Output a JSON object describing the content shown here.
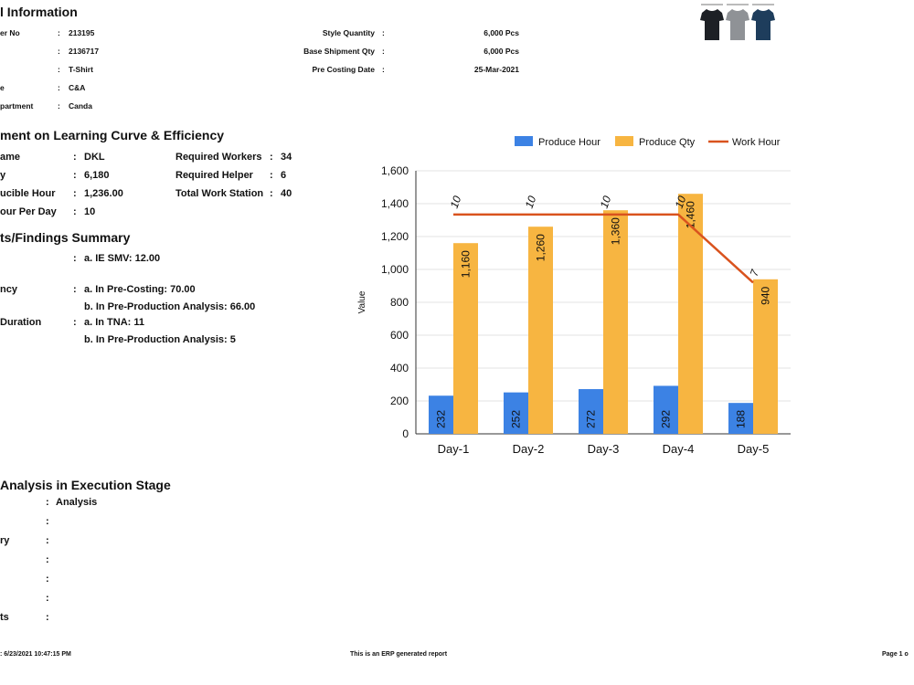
{
  "general": {
    "title": "l Information",
    "rows": [
      {
        "label": "er No",
        "value": "213195"
      },
      {
        "label": "",
        "value": "2136717"
      },
      {
        "label": "",
        "value": "T-Shirt"
      },
      {
        "label": "e",
        "value": "C&A"
      },
      {
        "label": "partment",
        "value": "Canda"
      }
    ],
    "right_rows": [
      {
        "label": "Style Quantity",
        "value": "6,000 Pcs"
      },
      {
        "label": "Base Shipment Qty",
        "value": "6,000 Pcs"
      },
      {
        "label": "Pre Costing Date",
        "value": "25-Mar-2021"
      }
    ]
  },
  "learning": {
    "title": "ment on Learning Curve & Efficiency",
    "left": [
      {
        "label": "ame",
        "value": "DKL"
      },
      {
        "label": "y",
        "value": "6,180"
      },
      {
        "label": "ucible Hour",
        "value": "1,236.00"
      },
      {
        "label": "our Per Day",
        "value": "10"
      }
    ],
    "right": [
      {
        "label": "Required Workers",
        "value": "34"
      },
      {
        "label": "Required Helper",
        "value": "6"
      },
      {
        "label": "Total Work Station",
        "value": "40"
      }
    ]
  },
  "findings": {
    "title": "ts/Findings Summary",
    "rows": [
      {
        "label": "",
        "value": "a. IE SMV: 12.00"
      },
      {
        "label": "ncy",
        "value": "a. In Pre-Costing: 70.00"
      },
      {
        "label": "",
        "value": "b. In Pre-Production Analysis: 66.00"
      },
      {
        "label": "Duration",
        "value": "a. In TNA: 11"
      },
      {
        "label": "",
        "value": "b. In Pre-Production Analysis: 5"
      }
    ]
  },
  "execution": {
    "title": "Analysis in Execution Stage",
    "rows": [
      {
        "label": "",
        "value": "Analysis"
      },
      {
        "label": "",
        "value": ""
      },
      {
        "label": "ry",
        "value": ""
      },
      {
        "label": "",
        "value": ""
      },
      {
        "label": "",
        "value": ""
      },
      {
        "label": "",
        "value": ""
      },
      {
        "label": "ts",
        "value": ""
      }
    ]
  },
  "footer": {
    "left": ": 6/23/2021 10:47:15 PM",
    "center": "This is an ERP generated report",
    "right": "Page 1 o"
  },
  "colors": {
    "produce_hour": "#3c82e4",
    "produce_qty": "#f7b541",
    "work_hour": "#d9531e",
    "shirts": [
      "#1d2025",
      "#8f9296",
      "#1e3d5c"
    ]
  },
  "chart_data": {
    "type": "bar",
    "categories": [
      "Day-1",
      "Day-2",
      "Day-3",
      "Day-4",
      "Day-5"
    ],
    "series": [
      {
        "name": "Produce Hour",
        "type": "bar",
        "values": [
          232,
          252,
          272,
          292,
          188
        ],
        "color": "#3c82e4"
      },
      {
        "name": "Produce Qty",
        "type": "bar",
        "values": [
          1160,
          1260,
          1360,
          1460,
          940
        ],
        "color": "#f7b541"
      },
      {
        "name": "Work Hour",
        "type": "line",
        "values": [
          10,
          10,
          10,
          10,
          7
        ],
        "plotted_at": [
          1334,
          1334,
          1334,
          1334,
          920
        ],
        "color": "#d9531e"
      }
    ],
    "ylabel": "Value",
    "ylim": [
      0,
      1600
    ],
    "yticks": [
      "0",
      "200",
      "400",
      "600",
      "800",
      "1,000",
      "1,200",
      "1,400",
      "1,600"
    ],
    "bar_labels": {
      "Produce Hour": [
        "232",
        "252",
        "272",
        "292",
        "188"
      ],
      "Produce Qty": [
        "1,160",
        "1,260",
        "1,360",
        "1,460",
        "940"
      ],
      "Work Hour": [
        "10",
        "10",
        "10",
        "10",
        "7"
      ]
    },
    "legend_position": "top-right",
    "grid": true
  }
}
